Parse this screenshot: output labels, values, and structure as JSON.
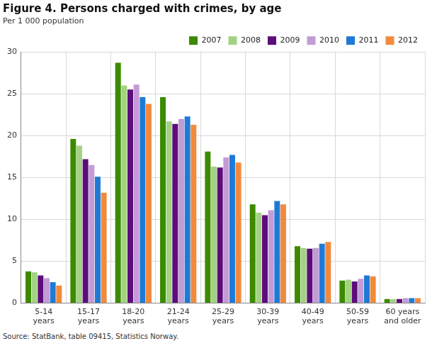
{
  "chart_data": {
    "type": "bar",
    "title": "Figure 4. Persons charged with crimes, by age",
    "subtitle": "Per 1 000 population",
    "source": "Source: StatBank, table 09415, Statistics Norway.",
    "categories": [
      "5-14 years",
      "15-17 years",
      "18-20 years",
      "21-24 years",
      "25-29 years",
      "30-39 years",
      "40-49 years",
      "50-59 years",
      "60 years and older"
    ],
    "series": [
      {
        "name": "2007",
        "color": "#3b8a00",
        "values": [
          3.8,
          19.6,
          28.7,
          24.6,
          18.1,
          11.8,
          6.8,
          2.7,
          0.5
        ]
      },
      {
        "name": "2008",
        "color": "#a3d283",
        "values": [
          3.7,
          18.8,
          26.0,
          21.7,
          16.3,
          10.8,
          6.6,
          2.8,
          0.5
        ]
      },
      {
        "name": "2009",
        "color": "#5c0d7b",
        "values": [
          3.3,
          17.2,
          25.5,
          21.4,
          16.2,
          10.5,
          6.5,
          2.6,
          0.5
        ]
      },
      {
        "name": "2010",
        "color": "#c39bd6",
        "values": [
          3.0,
          16.5,
          26.1,
          22.0,
          17.4,
          11.1,
          6.6,
          2.9,
          0.6
        ]
      },
      {
        "name": "2011",
        "color": "#1f7ad6",
        "values": [
          2.5,
          15.1,
          24.6,
          22.3,
          17.7,
          12.2,
          7.1,
          3.3,
          0.6
        ]
      },
      {
        "name": "2012",
        "color": "#f28a3c",
        "values": [
          2.1,
          13.2,
          23.8,
          21.3,
          16.8,
          11.8,
          7.3,
          3.2,
          0.6
        ]
      }
    ],
    "ylim": [
      0,
      30
    ],
    "yticks": [
      0,
      5,
      10,
      15,
      20,
      25,
      30
    ],
    "grid": true,
    "legend": "top-right"
  }
}
